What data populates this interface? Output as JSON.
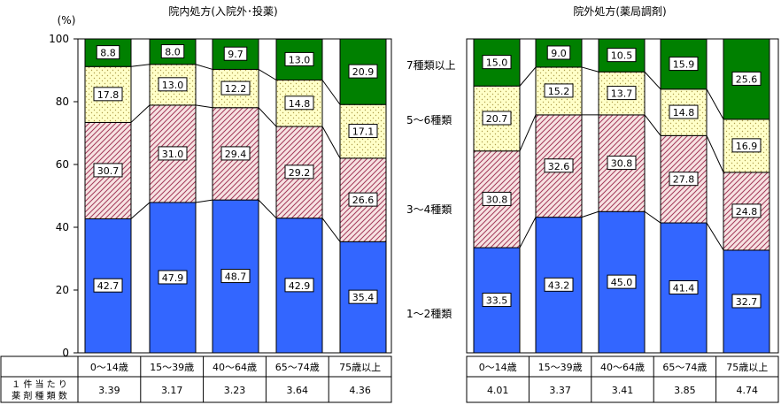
{
  "chart_data": [
    {
      "type": "bar",
      "stacked": true,
      "title": "院内処方(入院外･投薬)",
      "ylabel": "(%)",
      "ylim": [
        0,
        100
      ],
      "yticks": [
        0,
        20,
        40,
        60,
        80,
        100
      ],
      "categories": [
        "0～14歳",
        "15～39歳",
        "40～64歳",
        "65～74歳",
        "75歳以上"
      ],
      "series": [
        {
          "name": "1～2種類",
          "values": [
            42.7,
            47.9,
            48.7,
            42.9,
            35.4
          ],
          "color": "#3366ff"
        },
        {
          "name": "3～4種類",
          "values": [
            30.7,
            31.0,
            29.4,
            29.2,
            26.6
          ],
          "color": "#f6dede"
        },
        {
          "name": "5～6種類",
          "values": [
            17.8,
            13.0,
            12.2,
            14.8,
            17.1
          ],
          "color": "#ffffc6"
        },
        {
          "name": "7種類以上",
          "values": [
            8.8,
            8.0,
            9.7,
            13.0,
            20.9
          ],
          "color": "#008000"
        }
      ],
      "labels": [
        [
          "42.7",
          "47.9",
          "48.7",
          "42.9",
          "35.4"
        ],
        [
          "30.7",
          "31.0",
          "29.4",
          "29.2",
          "26.6"
        ],
        [
          "17.8",
          "13.0",
          "12.2",
          "14.8",
          "17.1"
        ],
        [
          "8.8",
          "8.0",
          "9.7",
          "13.0",
          "20.9"
        ]
      ],
      "table": {
        "row_label_line1": "１ 件 当 た り",
        "row_label_line2": "薬 剤 種 類 数",
        "values": [
          "3.39",
          "3.17",
          "3.23",
          "3.64",
          "4.36"
        ]
      }
    },
    {
      "type": "bar",
      "stacked": true,
      "title": "院外処方(薬局調剤)",
      "ylim": [
        0,
        100
      ],
      "categories": [
        "0～14歳",
        "15～39歳",
        "40～64歳",
        "65～74歳",
        "75歳以上"
      ],
      "series": [
        {
          "name": "1～2種類",
          "values": [
            33.5,
            43.2,
            45.0,
            41.4,
            32.7
          ],
          "color": "#3366ff"
        },
        {
          "name": "3～4種類",
          "values": [
            30.8,
            32.6,
            30.8,
            27.8,
            24.8
          ],
          "color": "#f6dede"
        },
        {
          "name": "5～6種類",
          "values": [
            20.7,
            15.2,
            13.7,
            14.8,
            16.9
          ],
          "color": "#ffffc6"
        },
        {
          "name": "7種類以上",
          "values": [
            15.0,
            9.0,
            10.5,
            15.9,
            25.6
          ],
          "color": "#008000"
        }
      ],
      "labels": [
        [
          "33.5",
          "43.2",
          "45.0",
          "41.4",
          "32.7"
        ],
        [
          "30.8",
          "32.6",
          "30.8",
          "27.8",
          "24.8"
        ],
        [
          "20.7",
          "15.2",
          "13.7",
          "14.8",
          "16.9"
        ],
        [
          "15.0",
          "9.0",
          "10.5",
          "15.9",
          "25.6"
        ]
      ],
      "table": {
        "values": [
          "4.01",
          "3.37",
          "3.41",
          "3.85",
          "4.74"
        ]
      }
    }
  ],
  "legend": {
    "placement": "between-charts",
    "items": [
      "7種類以上",
      "5～6種類",
      "3～4種類",
      "1～2種類"
    ]
  }
}
